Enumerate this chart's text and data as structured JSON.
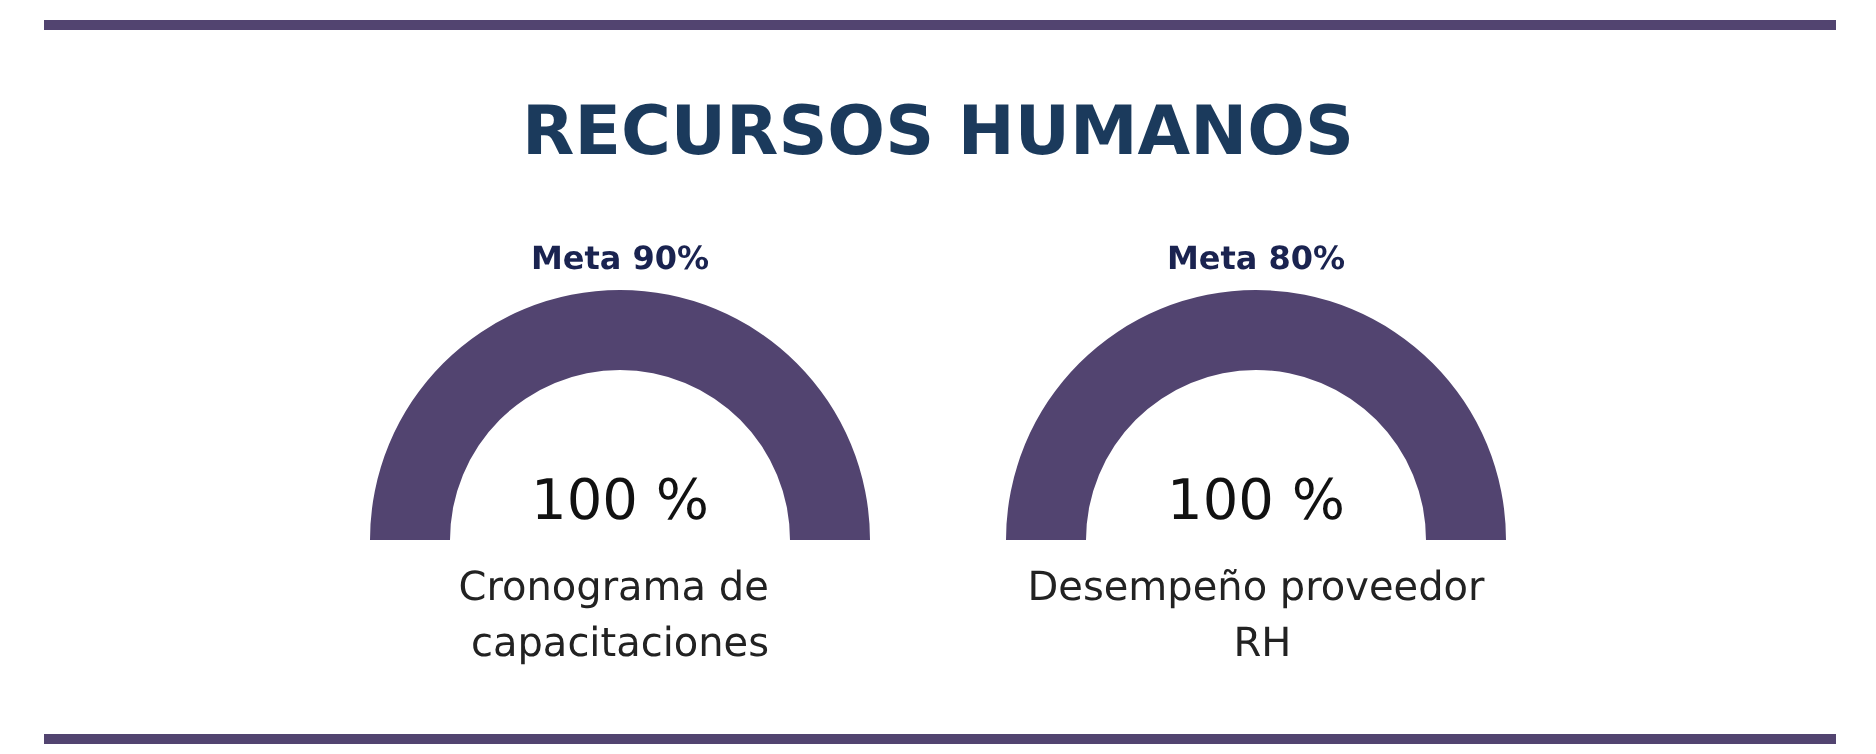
{
  "chart_data": [
    {
      "type": "other",
      "title": "RECURSOS HUMANOS"
    },
    {
      "type": "pie",
      "title": "Meta 90%",
      "categories": [
        "Cronograma de capacitaciones"
      ],
      "values": [
        100
      ],
      "colors": [
        "#524470"
      ],
      "value_labels": [
        "100 %"
      ]
    },
    {
      "type": "pie",
      "title": "Meta 80%",
      "categories": [
        "Desempeño proveedor RH"
      ],
      "values": [
        100
      ],
      "colors": [
        "#524470"
      ],
      "value_labels": [
        "100 %"
      ]
    }
  ]
}
